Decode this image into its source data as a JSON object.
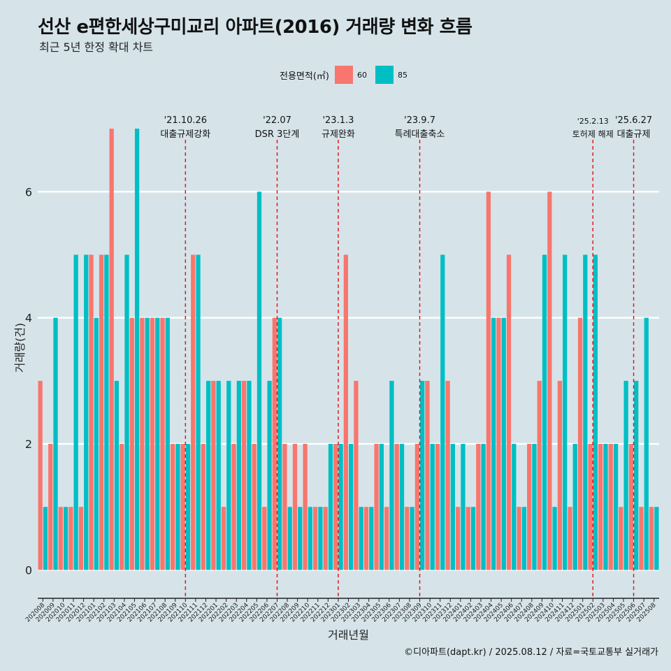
{
  "chart_data": {
    "type": "bar",
    "title": "선산 e편한세상구미교리 아파트(2016) 거래량 변화 흐름",
    "subtitle": "최근 5년 한정 확대 차트",
    "xlabel": "거래년월",
    "ylabel": "거래량(건)",
    "ylim": [
      -0.35,
      7.4
    ],
    "yticks": [
      0,
      2,
      4,
      6
    ],
    "legend": {
      "title": "전용면적(㎡)",
      "position": "top"
    },
    "categories": [
      "202008",
      "202009",
      "202010",
      "202011",
      "202012",
      "202101",
      "202102",
      "202103",
      "202104",
      "202105",
      "202106",
      "202107",
      "202108",
      "202109",
      "202110",
      "202111",
      "202112",
      "202201",
      "202202",
      "202203",
      "202204",
      "202205",
      "202206",
      "202207",
      "202208",
      "202209",
      "202210",
      "202211",
      "202212",
      "202301",
      "202302",
      "202303",
      "202304",
      "202305",
      "202306",
      "202307",
      "202308",
      "202309",
      "202310",
      "202311",
      "202312",
      "202401",
      "202402",
      "202403",
      "202404",
      "202405",
      "202406",
      "202407",
      "202408",
      "202409",
      "202410",
      "202411",
      "202412",
      "202501",
      "202502",
      "202503",
      "202504",
      "202505",
      "202506",
      "202507",
      "202508"
    ],
    "series": [
      {
        "name": "60",
        "color": "#f8766d",
        "values": [
          3,
          2,
          1,
          1,
          1,
          5,
          5,
          7,
          2,
          4,
          4,
          4,
          4,
          2,
          2,
          5,
          2,
          3,
          1,
          2,
          3,
          2,
          1,
          4,
          2,
          2,
          2,
          1,
          1,
          2,
          5,
          3,
          1,
          2,
          1,
          2,
          1,
          2,
          3,
          2,
          3,
          1,
          1,
          2,
          6,
          4,
          5,
          1,
          2,
          3,
          6,
          3,
          1,
          4,
          2,
          2,
          2,
          1,
          2,
          1,
          1
        ]
      },
      {
        "name": "85",
        "color": "#00bfc4",
        "values": [
          1,
          4,
          1,
          5,
          5,
          4,
          5,
          3,
          5,
          7,
          4,
          4,
          4,
          2,
          2,
          5,
          3,
          3,
          3,
          3,
          3,
          6,
          3,
          4,
          1,
          1,
          1,
          1,
          2,
          2,
          2,
          1,
          1,
          2,
          3,
          2,
          1,
          3,
          2,
          5,
          2,
          2,
          1,
          2,
          4,
          4,
          2,
          1,
          2,
          5,
          1,
          5,
          2,
          5,
          5,
          2,
          2,
          3,
          3,
          4,
          1
        ]
      }
    ],
    "annotations": [
      {
        "x": "202110",
        "date": "'21.10.26",
        "label": "대출규제강화"
      },
      {
        "x": "202207",
        "date": "'22.07",
        "label": "DSR 3단계"
      },
      {
        "x": "202301",
        "date": "'23.1.3",
        "label": "규제완화"
      },
      {
        "x": "202309",
        "date": "'23.9.7",
        "label": "특례대출축소"
      },
      {
        "x": "202502",
        "date": "'25.2.13",
        "label": "토허제 해제"
      },
      {
        "x": "202506",
        "date": "'25.6.27",
        "label": "대출규제"
      }
    ],
    "caption": "©디아파트(dapt.kr) / 2025.08.12 / 자료=국토교통부 실거래가"
  }
}
